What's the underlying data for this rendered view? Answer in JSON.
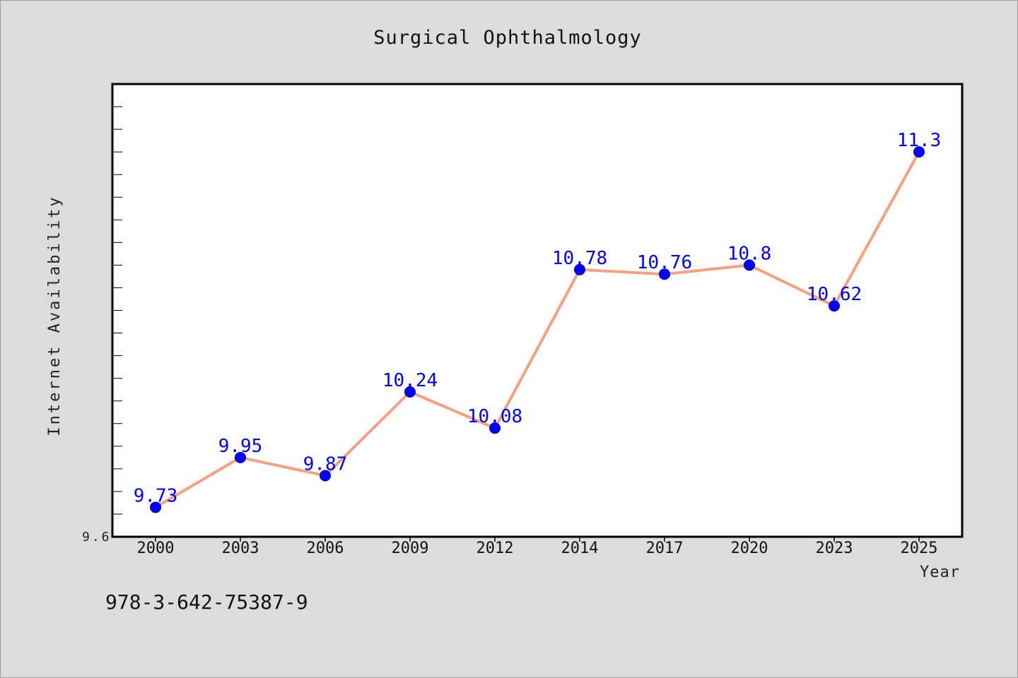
{
  "chart_data": {
    "type": "line",
    "title": "Surgical Ophthalmology",
    "xlabel": "Year",
    "ylabel": "Internet Availability",
    "categories": [
      "2000",
      "2003",
      "2006",
      "2009",
      "2012",
      "2014",
      "2017",
      "2020",
      "2023",
      "2025"
    ],
    "series": [
      {
        "values": [
          9.73,
          9.95,
          9.87,
          10.24,
          10.08,
          10.78,
          10.76,
          10.8,
          10.62,
          11.3
        ],
        "labels": [
          "9.73",
          "9.95",
          "9.87",
          "10.24",
          "10.08",
          "10.78",
          "10.76",
          "10.8",
          "10.62",
          "11.3"
        ],
        "line_color": "#f5a07f",
        "marker_color": "#0000ff"
      }
    ],
    "ylim": [
      9.6,
      11.6
    ],
    "y_tick_label": "9.6",
    "grid": false,
    "legend": "none"
  },
  "footer_text": "978-3-642-75387-9",
  "colors": {
    "background": "#dcdcdc",
    "plot_background": "#ffffff",
    "line": "#f5a07f",
    "marker": "#0000ff",
    "data_label": "#0000ff"
  }
}
